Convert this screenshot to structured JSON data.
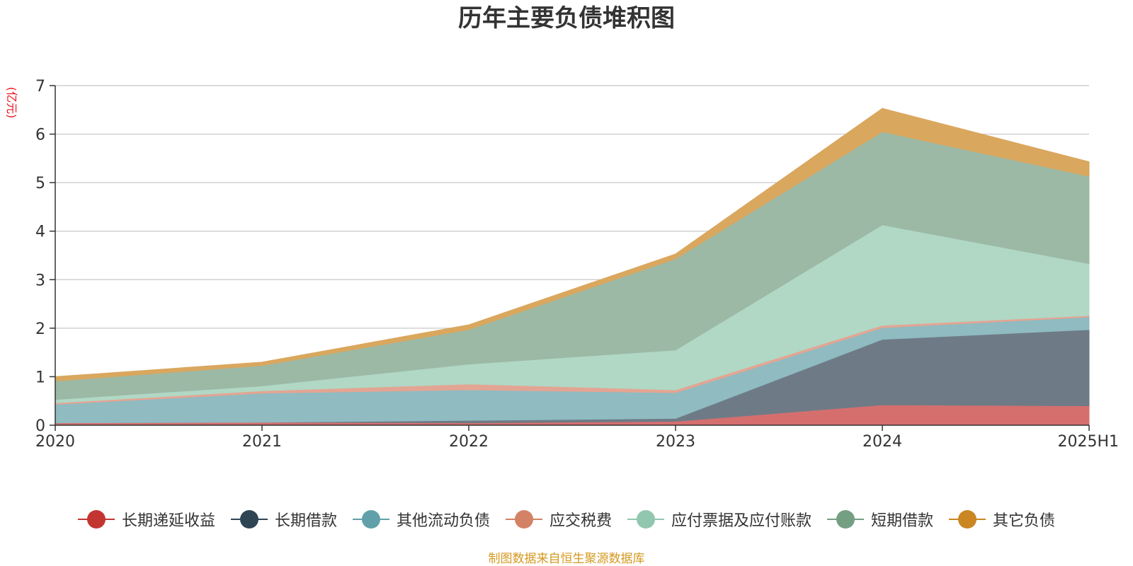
{
  "chart_data": {
    "type": "area",
    "stacked": true,
    "title": "历年主要负债堆积图",
    "unit_label": "(亿元)",
    "x": [
      "2020",
      "2021",
      "2022",
      "2023",
      "2024",
      "2025H1"
    ],
    "ylim": [
      0,
      7
    ],
    "yticks": [
      0,
      1,
      2,
      3,
      4,
      5,
      6,
      7
    ],
    "grid": true,
    "legend_position": "bottom",
    "series": [
      {
        "name": "长期递延收益",
        "color": "#c23531",
        "fill": "#d46f6e",
        "values": [
          0.05,
          0.06,
          0.05,
          0.08,
          0.42,
          0.4
        ]
      },
      {
        "name": "长期借款",
        "color": "#2f4554",
        "fill": "#6e7b86",
        "values": [
          0.0,
          0.0,
          0.05,
          0.06,
          1.35,
          1.57
        ]
      },
      {
        "name": "其他流动负债",
        "color": "#61a0a8",
        "fill": "#8fbbc1",
        "values": [
          0.38,
          0.6,
          0.63,
          0.53,
          0.24,
          0.26
        ]
      },
      {
        "name": "应交税费",
        "color": "#d48265",
        "fill": "#e3a593",
        "values": [
          0.03,
          0.05,
          0.12,
          0.06,
          0.05,
          0.03
        ]
      },
      {
        "name": "应付票据及应付账款",
        "color": "#91c7ae",
        "fill": "#b0d8c5",
        "values": [
          0.07,
          0.1,
          0.41,
          0.82,
          2.07,
          1.07
        ]
      },
      {
        "name": "短期借款",
        "color": "#749f83",
        "fill": "#9cb9a6",
        "values": [
          0.38,
          0.42,
          0.71,
          1.88,
          1.92,
          1.8
        ]
      },
      {
        "name": "其它负债",
        "color": "#ca8622",
        "fill": "#d9a75e",
        "values": [
          0.09,
          0.07,
          0.1,
          0.1,
          0.48,
          0.3
        ]
      }
    ]
  },
  "footer": {
    "source": "制图数据来自恒生聚源数据库"
  }
}
